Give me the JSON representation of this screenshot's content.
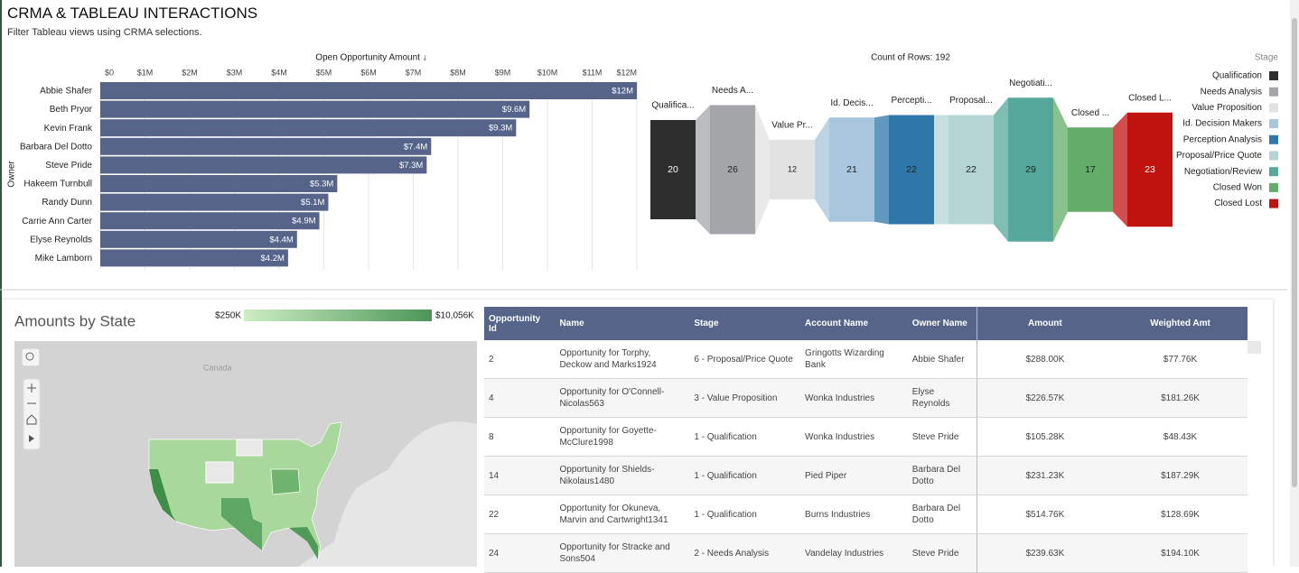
{
  "header": {
    "title": "CRMA & TABLEAU INTERACTIONS",
    "subtitle": "Filter Tableau views using CRMA selections."
  },
  "chart_data": [
    {
      "type": "hbar",
      "title": "Open Opportunity Amount ↓",
      "y_label": "Owner",
      "categories": [
        "Abbie Shafer",
        "Beth Pryor",
        "Kevin Frank",
        "Barbara Del Dotto",
        "Steve Pride",
        "Hakeem Turnbull",
        "Randy Dunn",
        "Carrie Ann Carter",
        "Elyse Reynolds",
        "Mike Lamborn"
      ],
      "values": [
        12000000,
        9600000,
        9300000,
        7400000,
        7300000,
        5300000,
        5100000,
        4900000,
        4400000,
        4200000
      ],
      "value_labels": [
        "$12M",
        "$9.6M",
        "$9.3M",
        "$7.4M",
        "$7.3M",
        "$5.3M",
        "$5.1M",
        "$4.9M",
        "$4.4M",
        "$4.2M"
      ],
      "color": "#56648a",
      "grid": true,
      "xlim": [
        0,
        12000000
      ],
      "xticks": [
        {
          "value": 0,
          "label": "$0"
        },
        {
          "value": 1000000,
          "label": "$1M"
        },
        {
          "value": 2000000,
          "label": "$2M"
        },
        {
          "value": 3000000,
          "label": "$3M"
        },
        {
          "value": 4000000,
          "label": "$4M"
        },
        {
          "value": 5000000,
          "label": "$5M"
        },
        {
          "value": 6000000,
          "label": "$6M"
        },
        {
          "value": 7000000,
          "label": "$7M"
        },
        {
          "value": 8000000,
          "label": "$8M"
        },
        {
          "value": 9000000,
          "label": "$9M"
        },
        {
          "value": 10000000,
          "label": "$10M"
        },
        {
          "value": 11000000,
          "label": "$11M"
        },
        {
          "value": 12000000,
          "label": "$12M"
        }
      ]
    },
    {
      "type": "funnel",
      "title": "Count of Rows: 192",
      "legend_title": "Stage",
      "categories": [
        "Qualification",
        "Needs Analysis",
        "Value Proposition",
        "Id. Decision Makers",
        "Perception Analysis",
        "Proposal/Price Quote",
        "Negotiation/Review",
        "Closed Won",
        "Closed Lost"
      ],
      "stage_labels": [
        "Qualifica...",
        "Needs A...",
        "Value Pr...",
        "Id. Decis...",
        "Percepti...",
        "Proposal...",
        "Negotiati...",
        "Closed ...",
        "Closed L..."
      ],
      "values": [
        20,
        26,
        12,
        21,
        22,
        22,
        29,
        17,
        23
      ],
      "colors": [
        "#2d2d2d",
        "#a3a5a8",
        "#e2e2e2",
        "#a8c6dc",
        "#2f77a8",
        "#b5d4d4",
        "#55a89b",
        "#62ad6a",
        "#c0130f"
      ]
    }
  ],
  "map": {
    "title": "Amounts by State",
    "legend_min": "$250K",
    "legend_max": "$10,056K",
    "place_label": "Canada"
  },
  "table": {
    "columns": [
      "Opportunity Id",
      "Name",
      "Stage",
      "Account Name",
      "Owner Name",
      "Amount",
      "Weighted Amt"
    ],
    "rows": [
      [
        "2",
        "Opportunity for Torphy, Deckow and Marks1924",
        "6 - Proposal/Price Quote",
        "Gringotts Wizarding Bank",
        "Abbie Shafer",
        "$288.00K",
        "$77.76K"
      ],
      [
        "4",
        "Opportunity for O'Connell-Nicolas563",
        "3 - Value Proposition",
        "Wonka Industries",
        "Elyse Reynolds",
        "$226.57K",
        "$181.26K"
      ],
      [
        "8",
        "Opportunity for Goyette-McClure1998",
        "1 - Qualification",
        "Wonka Industries",
        "Steve Pride",
        "$105.28K",
        "$48.43K"
      ],
      [
        "14",
        "Opportunity for Shields-Nikolaus1480",
        "1 - Qualification",
        "Pied Piper",
        "Barbara Del Dotto",
        "$231.23K",
        "$187.29K"
      ],
      [
        "22",
        "Opportunity for Okuneva, Marvin and Cartwright1341",
        "1 - Qualification",
        "Burns Industries",
        "Barbara Del Dotto",
        "$514.76K",
        "$128.69K"
      ],
      [
        "24",
        "Opportunity for Stracke and Sons504",
        "2 - Needs Analysis",
        "Vandelay Industries",
        "Steve Pride",
        "$239.63K",
        "$194.10K"
      ]
    ]
  }
}
